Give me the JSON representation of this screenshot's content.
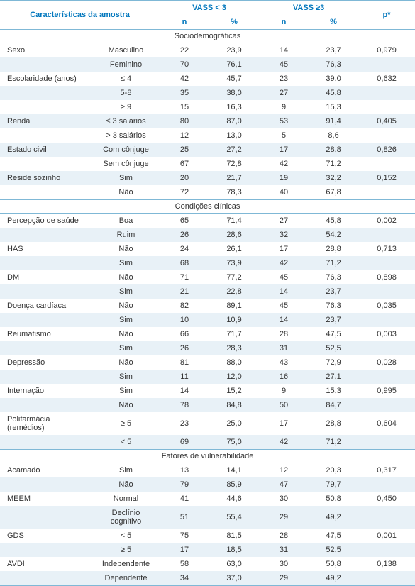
{
  "colors": {
    "header_text": "#0277bd",
    "rule": "#7fb8d6",
    "row_alt_bg": "#e8f1f7",
    "body_text": "#333333",
    "background": "#ffffff"
  },
  "typography": {
    "body_fontsize_pt": 8,
    "header_weight": "bold"
  },
  "headers": {
    "characteristics": "Características da amostra",
    "group1": "VASS < 3",
    "group2": "VASS ≥3",
    "pstar": "p*",
    "n": "n",
    "pct": "%"
  },
  "sections": [
    {
      "title": "Sociodemográficas",
      "rows": [
        {
          "label": "Sexo",
          "cat": "Masculino",
          "n1": "22",
          "p1": "23,9",
          "n2": "14",
          "p2": "23,7",
          "p": "0,979",
          "alt": false
        },
        {
          "label": "",
          "cat": "Feminino",
          "n1": "70",
          "p1": "76,1",
          "n2": "45",
          "p2": "76,3",
          "p": "",
          "alt": true
        },
        {
          "label": "Escolaridade (anos)",
          "cat": "≤ 4",
          "n1": "42",
          "p1": "45,7",
          "n2": "23",
          "p2": "39,0",
          "p": "0,632",
          "alt": false
        },
        {
          "label": "",
          "cat": "5-8",
          "n1": "35",
          "p1": "38,0",
          "n2": "27",
          "p2": "45,8",
          "p": "",
          "alt": true
        },
        {
          "label": "",
          "cat": "≥ 9",
          "n1": "15",
          "p1": "16,3",
          "n2": "9",
          "p2": "15,3",
          "p": "",
          "alt": false
        },
        {
          "label": "Renda",
          "cat": "≤ 3 salários",
          "n1": "80",
          "p1": "87,0",
          "n2": "53",
          "p2": "91,4",
          "p": "0,405",
          "alt": true
        },
        {
          "label": "",
          "cat": "> 3 salários",
          "n1": "12",
          "p1": "13,0",
          "n2": "5",
          "p2": "8,6",
          "p": "",
          "alt": false
        },
        {
          "label": "Estado civil",
          "cat": "Com cônjuge",
          "n1": "25",
          "p1": "27,2",
          "n2": "17",
          "p2": "28,8",
          "p": "0,826",
          "alt": true
        },
        {
          "label": "",
          "cat": "Sem cônjuge",
          "n1": "67",
          "p1": "72,8",
          "n2": "42",
          "p2": "71,2",
          "p": "",
          "alt": false
        },
        {
          "label": "Reside sozinho",
          "cat": "Sim",
          "n1": "20",
          "p1": "21,7",
          "n2": "19",
          "p2": "32,2",
          "p": "0,152",
          "alt": true
        },
        {
          "label": "",
          "cat": "Não",
          "n1": "72",
          "p1": "78,3",
          "n2": "40",
          "p2": "67,8",
          "p": "",
          "alt": false
        }
      ]
    },
    {
      "title": "Condições clínicas",
      "rows": [
        {
          "label": "Percepção de saúde",
          "cat": "Boa",
          "n1": "65",
          "p1": "71,4",
          "n2": "27",
          "p2": "45,8",
          "p": "0,002",
          "alt": false
        },
        {
          "label": "",
          "cat": "Ruim",
          "n1": "26",
          "p1": "28,6",
          "n2": "32",
          "p2": "54,2",
          "p": "",
          "alt": true
        },
        {
          "label": "HAS",
          "cat": "Não",
          "n1": "24",
          "p1": "26,1",
          "n2": "17",
          "p2": "28,8",
          "p": "0,713",
          "alt": false
        },
        {
          "label": "",
          "cat": "Sim",
          "n1": "68",
          "p1": "73,9",
          "n2": "42",
          "p2": "71,2",
          "p": "",
          "alt": true
        },
        {
          "label": "DM",
          "cat": "Não",
          "n1": "71",
          "p1": "77,2",
          "n2": "45",
          "p2": "76,3",
          "p": "0,898",
          "alt": false
        },
        {
          "label": "",
          "cat": "Sim",
          "n1": "21",
          "p1": "22,8",
          "n2": "14",
          "p2": "23,7",
          "p": "",
          "alt": true
        },
        {
          "label": "Doença cardíaca",
          "cat": "Não",
          "n1": "82",
          "p1": "89,1",
          "n2": "45",
          "p2": "76,3",
          "p": "0,035",
          "alt": false
        },
        {
          "label": "",
          "cat": "Sim",
          "n1": "10",
          "p1": "10,9",
          "n2": "14",
          "p2": "23,7",
          "p": "",
          "alt": true
        },
        {
          "label": "Reumatismo",
          "cat": "Não",
          "n1": "66",
          "p1": "71,7",
          "n2": "28",
          "p2": "47,5",
          "p": "0,003",
          "alt": false
        },
        {
          "label": "",
          "cat": "Sim",
          "n1": "26",
          "p1": "28,3",
          "n2": "31",
          "p2": "52,5",
          "p": "",
          "alt": true
        },
        {
          "label": "Depressão",
          "cat": "Não",
          "n1": "81",
          "p1": "88,0",
          "n2": "43",
          "p2": "72,9",
          "p": "0,028",
          "alt": false
        },
        {
          "label": "",
          "cat": "Sim",
          "n1": "11",
          "p1": "12,0",
          "n2": "16",
          "p2": "27,1",
          "p": "",
          "alt": true
        },
        {
          "label": "Internação",
          "cat": "Sim",
          "n1": "14",
          "p1": "15,2",
          "n2": "9",
          "p2": "15,3",
          "p": "0,995",
          "alt": false
        },
        {
          "label": "",
          "cat": "Não",
          "n1": "78",
          "p1": "84,8",
          "n2": "50",
          "p2": "84,7",
          "p": "",
          "alt": true
        },
        {
          "label": "Polifarmácia (remédios)",
          "cat": "≥ 5",
          "n1": "23",
          "p1": "25,0",
          "n2": "17",
          "p2": "28,8",
          "p": "0,604",
          "alt": false
        },
        {
          "label": "",
          "cat": "< 5",
          "n1": "69",
          "p1": "75,0",
          "n2": "42",
          "p2": "71,2",
          "p": "",
          "alt": true
        }
      ]
    },
    {
      "title": "Fatores de vulnerabilidade",
      "rows": [
        {
          "label": "Acamado",
          "cat": "Sim",
          "n1": "13",
          "p1": "14,1",
          "n2": "12",
          "p2": "20,3",
          "p": "0,317",
          "alt": false
        },
        {
          "label": "",
          "cat": "Não",
          "n1": "79",
          "p1": "85,9",
          "n2": "47",
          "p2": "79,7",
          "p": "",
          "alt": true
        },
        {
          "label": "MEEM",
          "cat": "Normal",
          "n1": "41",
          "p1": "44,6",
          "n2": "30",
          "p2": "50,8",
          "p": "0,450",
          "alt": false
        },
        {
          "label": "",
          "cat": "Declínio cognitivo",
          "n1": "51",
          "p1": "55,4",
          "n2": "29",
          "p2": "49,2",
          "p": "",
          "alt": true
        },
        {
          "label": "GDS",
          "cat": "< 5",
          "n1": "75",
          "p1": "81,5",
          "n2": "28",
          "p2": "47,5",
          "p": "0,001",
          "alt": false
        },
        {
          "label": "",
          "cat": "≥ 5",
          "n1": "17",
          "p1": "18,5",
          "n2": "31",
          "p2": "52,5",
          "p": "",
          "alt": true
        },
        {
          "label": "AVDI",
          "cat": "Independente",
          "n1": "58",
          "p1": "63,0",
          "n2": "30",
          "p2": "50,8",
          "p": "0,138",
          "alt": false
        },
        {
          "label": "",
          "cat": "Dependente",
          "n1": "34",
          "p1": "37,0",
          "n2": "29",
          "p2": "49,2",
          "p": "",
          "alt": true
        }
      ]
    }
  ]
}
